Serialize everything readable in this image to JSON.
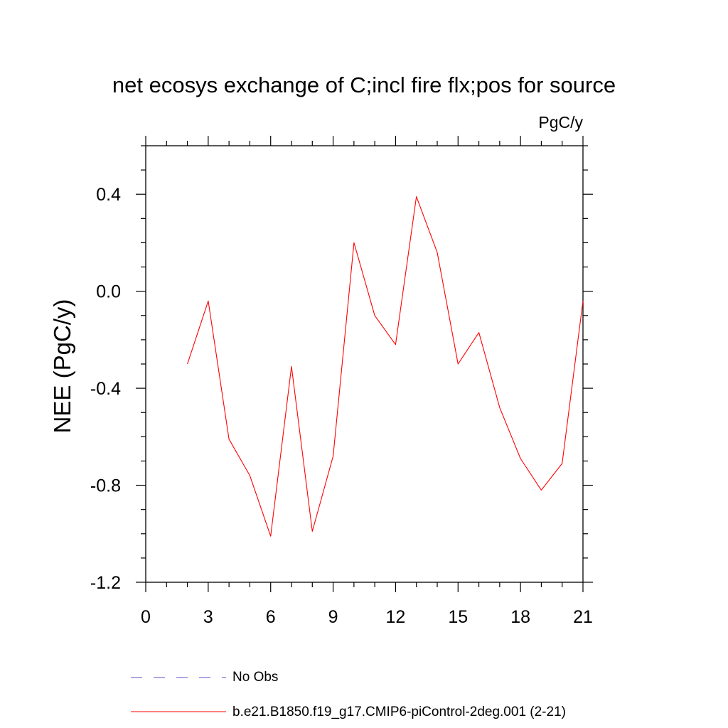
{
  "chart_data": {
    "type": "line",
    "title": "net ecosys exchange of C;incl fire flx;pos for source",
    "units_label": "PgC/y",
    "ylabel": "NEE  (PgC/y)",
    "xlabel": "",
    "xlim": [
      0,
      21
    ],
    "ylim": [
      -1.2,
      0.6
    ],
    "x_ticks": [
      0,
      3,
      6,
      9,
      12,
      15,
      18,
      21
    ],
    "x_tick_labels": [
      "0",
      "3",
      "6",
      "9",
      "12",
      "15",
      "18",
      "21"
    ],
    "y_ticks": [
      -1.2,
      -0.8,
      -0.4,
      0.0,
      0.4
    ],
    "y_tick_labels": [
      "-1.2",
      "-0.8",
      "-0.4",
      "0.0",
      "0.4"
    ],
    "grid": false,
    "series": [
      {
        "name": "b.e21.B1850.f19_g17.CMIP6-piControl-2deg.001 (2-21)",
        "color": "#ff0000",
        "style": "solid",
        "x": [
          2,
          3,
          4,
          5,
          6,
          7,
          8,
          9,
          10,
          11,
          12,
          13,
          14,
          15,
          16,
          17,
          18,
          19,
          20,
          21
        ],
        "y": [
          -0.3,
          -0.04,
          -0.61,
          -0.76,
          -1.01,
          -0.31,
          -0.99,
          -0.68,
          0.2,
          -0.1,
          -0.22,
          0.39,
          0.16,
          -0.3,
          -0.17,
          -0.48,
          -0.69,
          -0.82,
          -0.71,
          -0.04
        ]
      }
    ],
    "legend": {
      "placement": "bottom",
      "entries": [
        {
          "label": "No Obs",
          "color": "#5a4fc8",
          "style": "dashed"
        },
        {
          "label": "b.e21.B1850.f19_g17.CMIP6-piControl-2deg.001 (2-21)",
          "color": "#ff0000",
          "style": "solid"
        }
      ]
    }
  }
}
